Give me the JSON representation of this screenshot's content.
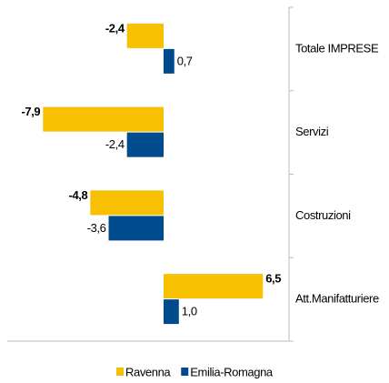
{
  "chart_data": {
    "type": "hbar",
    "categories": [
      "Totale IMPRESE",
      "Servizi",
      "Costruzioni",
      "Att.Manifatturiere"
    ],
    "series": [
      {
        "name": "Ravenna",
        "color": "#f7c000",
        "values": [
          -2.4,
          -7.9,
          -4.8,
          6.5
        ],
        "value_labels": [
          "-2,4",
          "-7,9",
          "-4,8",
          "6,5"
        ]
      },
      {
        "name": "Emilia-Romagna",
        "color": "#004b8d",
        "values": [
          0.7,
          -2.4,
          -3.6,
          1.0
        ],
        "value_labels": [
          "0,7",
          "-2,4",
          "-3,6",
          "1,0"
        ]
      }
    ],
    "legend": "bottom"
  }
}
